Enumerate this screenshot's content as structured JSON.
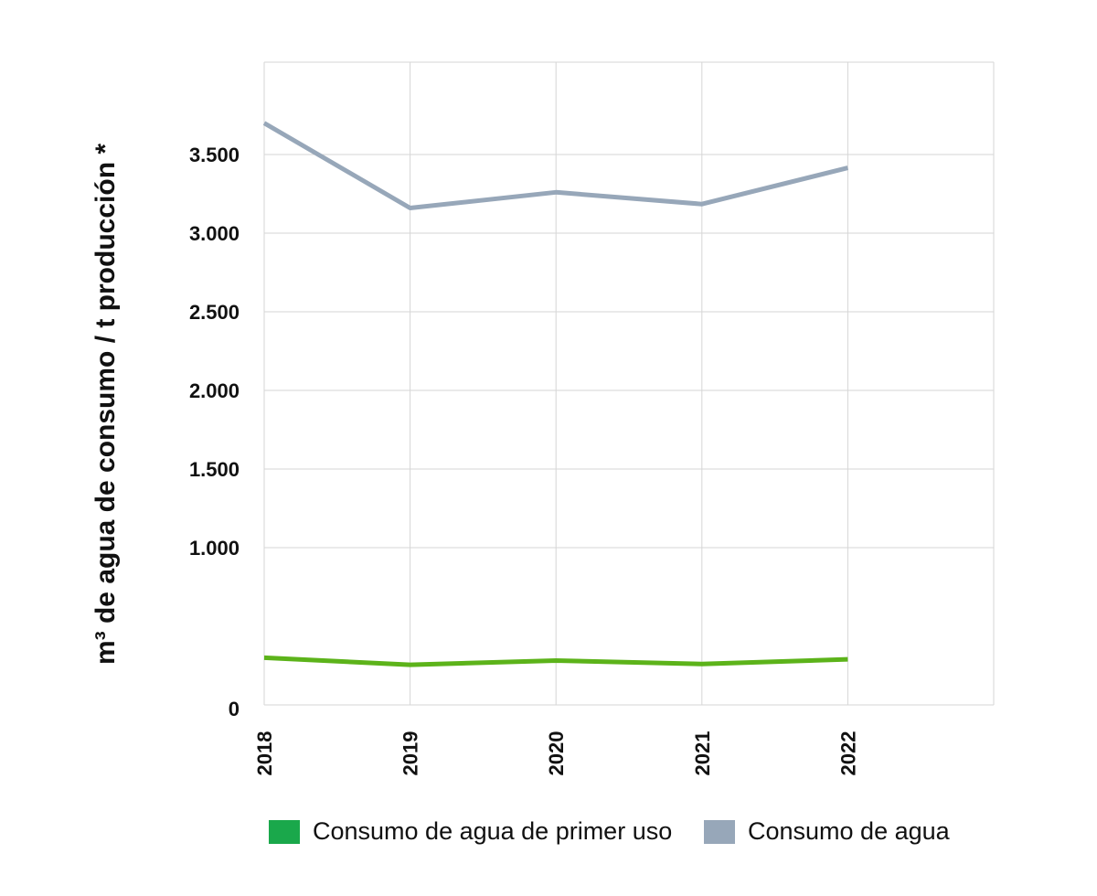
{
  "chart_data": {
    "type": "line",
    "categories": [
      "2018",
      "2019",
      "2020",
      "2021",
      "2022"
    ],
    "series": [
      {
        "name": "Consumo de agua de primer uso",
        "color": "#5cb31a",
        "values": [
          300,
          255,
          282,
          260,
          290
        ]
      },
      {
        "name": "Consumo de agua",
        "color": "#97a7b9",
        "values": [
          3700,
          3160,
          3260,
          3185,
          3415
        ]
      }
    ],
    "ylabel": "m³ de agua de consumo / t producción *",
    "ylim": [
      0,
      3500
    ],
    "yticks": [
      {
        "value": 0,
        "label": "0"
      },
      {
        "value": 1000,
        "label": "1.000"
      },
      {
        "value": 1500,
        "label": "1.500"
      },
      {
        "value": 2000,
        "label": "2.000"
      },
      {
        "value": 2500,
        "label": "2.500"
      },
      {
        "value": 3000,
        "label": "3.000"
      },
      {
        "value": 3500,
        "label": "3.500"
      }
    ],
    "grid": true,
    "legend_position": "bottom"
  },
  "legend": {
    "items": [
      {
        "label": "Consumo de agua de primer uso",
        "swatch_color": "#1aa84b"
      },
      {
        "label": "Consumo de agua",
        "swatch_color": "#97a7b9"
      }
    ]
  }
}
